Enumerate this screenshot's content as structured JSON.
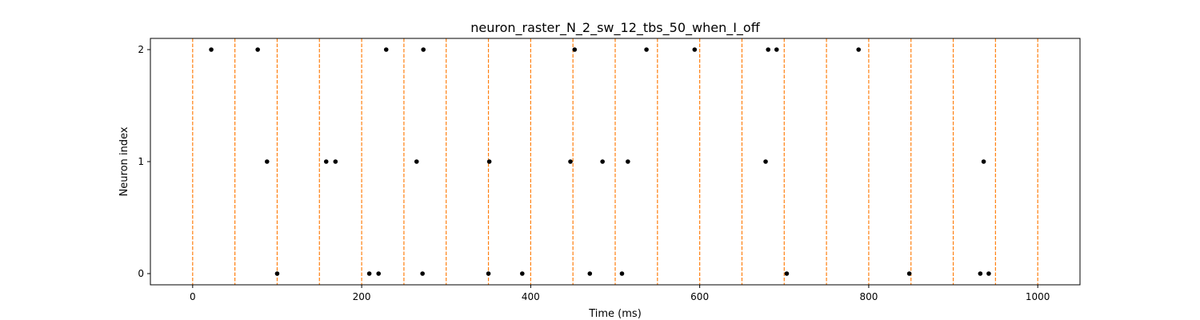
{
  "chart_data": {
    "type": "scatter",
    "title": "neuron_raster_N_2_sw_12_tbs_50_when_I_off",
    "xlabel": "Time (ms)",
    "ylabel": "Neuron index",
    "xlim": [
      -50,
      1050
    ],
    "ylim": [
      -0.1,
      2.1
    ],
    "xticks": [
      0,
      200,
      400,
      600,
      800,
      1000
    ],
    "yticks": [
      0,
      1,
      2
    ],
    "grid": false,
    "legend": "none",
    "spike_color": "#000000",
    "boundary_color": "#ff7f0e",
    "boundaries": [
      0,
      50,
      100,
      150,
      200,
      250,
      300,
      350,
      400,
      450,
      500,
      550,
      600,
      650,
      700,
      750,
      800,
      850,
      900,
      950,
      1000
    ],
    "series": [
      {
        "neuron": 2,
        "times": [
          22,
          77,
          229,
          273,
          452,
          537,
          594,
          681,
          691,
          788
        ]
      },
      {
        "neuron": 1,
        "times": [
          88,
          158,
          169,
          265,
          351,
          447,
          485,
          515,
          678,
          936
        ]
      },
      {
        "neuron": 0,
        "times": [
          100,
          209,
          220,
          272,
          350,
          390,
          470,
          508,
          703,
          848,
          932,
          942
        ]
      }
    ]
  }
}
